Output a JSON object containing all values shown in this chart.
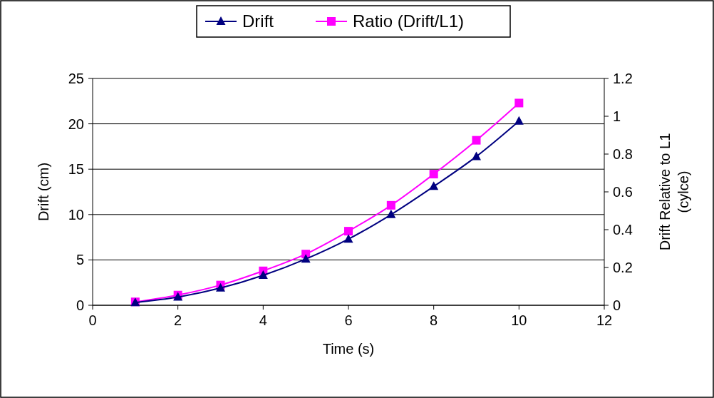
{
  "chart_data": {
    "type": "line",
    "xlabel": "Time (s)",
    "ylabel": "Drift (cm)",
    "y2label": "Drift Relative to L1 (cylce)",
    "x": [
      1,
      2,
      3,
      4,
      5,
      6,
      7,
      8,
      9,
      10
    ],
    "series": [
      {
        "name": "Drift",
        "color": "#000080",
        "marker": "triangle",
        "values": [
          0.3,
          0.9,
          1.9,
          3.3,
          5.1,
          7.3,
          10.0,
          13.1,
          16.4,
          20.3
        ]
      },
      {
        "name": "Ratio (Drift/L1)",
        "color": "#ff00ff",
        "marker": "square",
        "axis": "y2",
        "values": [
          0.018,
          0.054,
          0.107,
          0.182,
          0.271,
          0.392,
          0.529,
          0.694,
          0.873,
          1.07
        ]
      }
    ],
    "xlim": [
      0,
      12
    ],
    "xticks": [
      0,
      2,
      4,
      6,
      8,
      10,
      12
    ],
    "ylim": [
      0,
      25
    ],
    "yticks": [
      0,
      5,
      10,
      15,
      20,
      25
    ],
    "y2lim": [
      0,
      1.2
    ],
    "y2ticks": [
      0,
      0.2,
      0.4,
      0.6,
      0.8,
      1,
      1.2
    ],
    "grid": "y",
    "legend": "top"
  }
}
